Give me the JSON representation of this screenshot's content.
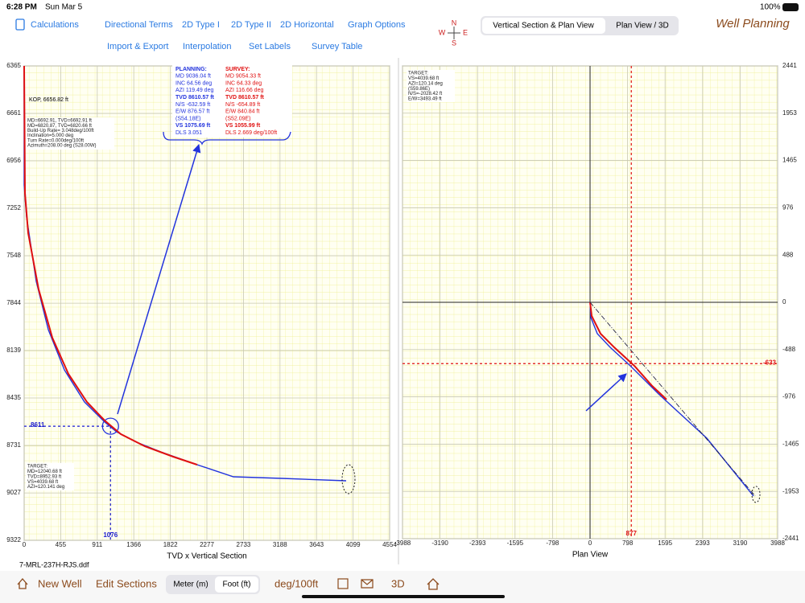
{
  "status_bar": {
    "time": "6:28 PM",
    "date": "Sun Mar 5",
    "battery": "100%"
  },
  "toolbar": {
    "row1": [
      "Calculations",
      "Directional Terms",
      "2D Type I",
      "2D Type II",
      "2D Horizontal",
      "Graph Options"
    ],
    "row2": [
      "Import & Export",
      "Interpolation",
      "Set Labels",
      "Survey Table"
    ]
  },
  "compass": {
    "n": "N",
    "w": "W",
    "e": "E",
    "s": "S"
  },
  "view_tabs": [
    "Vertical Section & Plan View",
    "Plan View / 3D"
  ],
  "app_title": "Well Planning",
  "file_name": "7-MRL-237H-RJS.ddf",
  "bottom_bar": {
    "new_well": "New Well",
    "edit_sections": "Edit Sections",
    "units": [
      "Meter (m)",
      "Foot (ft)"
    ],
    "dls_unit": "deg/100ft",
    "view_3d": "3D"
  },
  "chart_data": [
    {
      "type": "line",
      "x_label": "TVD x Vertical Section",
      "xlim": [
        0,
        4554
      ],
      "xticks": [
        0,
        455,
        911,
        1366,
        1822,
        2277,
        2733,
        3188,
        3643,
        4099,
        4554
      ],
      "ylim": [
        6365,
        9322
      ],
      "yticks": [
        6365,
        6661,
        6956,
        7252,
        7548,
        7844,
        8139,
        8435,
        8731,
        9027,
        9322
      ],
      "y_inverted": true,
      "y_axis_side": "left",
      "grid": true,
      "series": [
        {
          "color": "#2233dd",
          "x": [
            0,
            0,
            30,
            150,
            301,
            502,
            752,
            1003,
            1153,
            1404,
            1705,
            2156,
            2607,
            3210,
            4012
          ],
          "values": [
            6365,
            7107,
            7307,
            7708,
            8009,
            8260,
            8460,
            8585,
            8646,
            8711,
            8771,
            8851,
            8926,
            8936,
            8951
          ]
        },
        {
          "color": "#e01010",
          "x": [
            0,
            10,
            50,
            181,
            351,
            552,
            782,
            1003,
            1204,
            1505,
            1856,
            2156
          ],
          "values": [
            6365,
            7157,
            7407,
            7758,
            8059,
            8285,
            8460,
            8575,
            8660,
            8736,
            8801,
            8851
          ]
        }
      ],
      "crosshair": {
        "x": 1076,
        "y": 8611,
        "color": "#1a1ad0"
      },
      "annotations": {
        "kop": "KOP, 6656.82 ft",
        "section_info": [
          "MD=6692.91, TVD=6692.91 ft",
          "MD=6820.87, TVD=6820.66 ft",
          "Build-Up Rate= 3.048deg/100ft",
          "Inclination=5.000 deg",
          "Turn Rate=0.000deg/100ft",
          "Azimuth=208.00 deg (S28.00W)"
        ],
        "target": [
          "TARGET:",
          "MD=12040.68 ft",
          "TVD=8952.93 ft",
          "VS=4039.68 ft",
          "AZI=120.141 deg"
        ],
        "planning": [
          "PLANNING:",
          "MD 9036.04 ft",
          "INC 64.56 deg",
          "AZI 119.49 deg",
          "TVD 8610.57 ft",
          "N/S -632.59 ft",
          "E/W 876.57 ft",
          "(S54.18E)",
          "VS 1075.69 ft",
          "DLS 3.051"
        ],
        "survey": [
          "SURVEY:",
          "MD 9054.33 ft",
          "INC 64.33 deg",
          "AZI 116.66 deg",
          "TVD 8610.57 ft",
          "N/S -654.89 ft",
          "E/W 840.84 ft",
          "(S52.09E)",
          "VS 1055.99 ft",
          "DLS 2.669 deg/100ft"
        ]
      }
    },
    {
      "type": "line",
      "x_label": "Plan View",
      "xlim": [
        -3988,
        3988
      ],
      "xticks": [
        -3988,
        -3190,
        -2393,
        -1595,
        -798,
        0,
        798,
        1595,
        2393,
        3190,
        3988
      ],
      "ylim": [
        -2441,
        2441
      ],
      "yticks": [
        2441,
        1953,
        1465,
        976,
        488,
        0,
        -488,
        -976,
        -1465,
        -1953,
        -2441
      ],
      "y_inverted": false,
      "y_axis_side": "right",
      "grid": true,
      "zero_lines": true,
      "series": [
        {
          "color": "#2233dd",
          "x": [
            0,
            17,
            154,
            428,
            856,
            1455,
            2482,
            3475
          ],
          "values": [
            0,
            -158,
            -324,
            -465,
            -656,
            -946,
            -1403,
            -2000
          ]
        },
        {
          "color": "#e01010",
          "x": [
            0,
            34,
            223,
            514,
            942,
            1318,
            1626
          ],
          "values": [
            0,
            -141,
            -324,
            -465,
            -656,
            -863,
            -1004
          ]
        },
        {
          "color": "#222244",
          "dash": "dashdot",
          "x": [
            0,
            3510
          ],
          "values": [
            0,
            -2000
          ]
        }
      ],
      "crosshair": {
        "x": 877,
        "y": -633,
        "color": "#e01010"
      },
      "annotations": {
        "target": [
          "TARGET:",
          "VS=4039.68 ft",
          "AZI=120.14 deg",
          "(S59.86E)",
          "N/S=-2028.42 ft",
          "E/W=3493.49 ft"
        ]
      }
    }
  ]
}
